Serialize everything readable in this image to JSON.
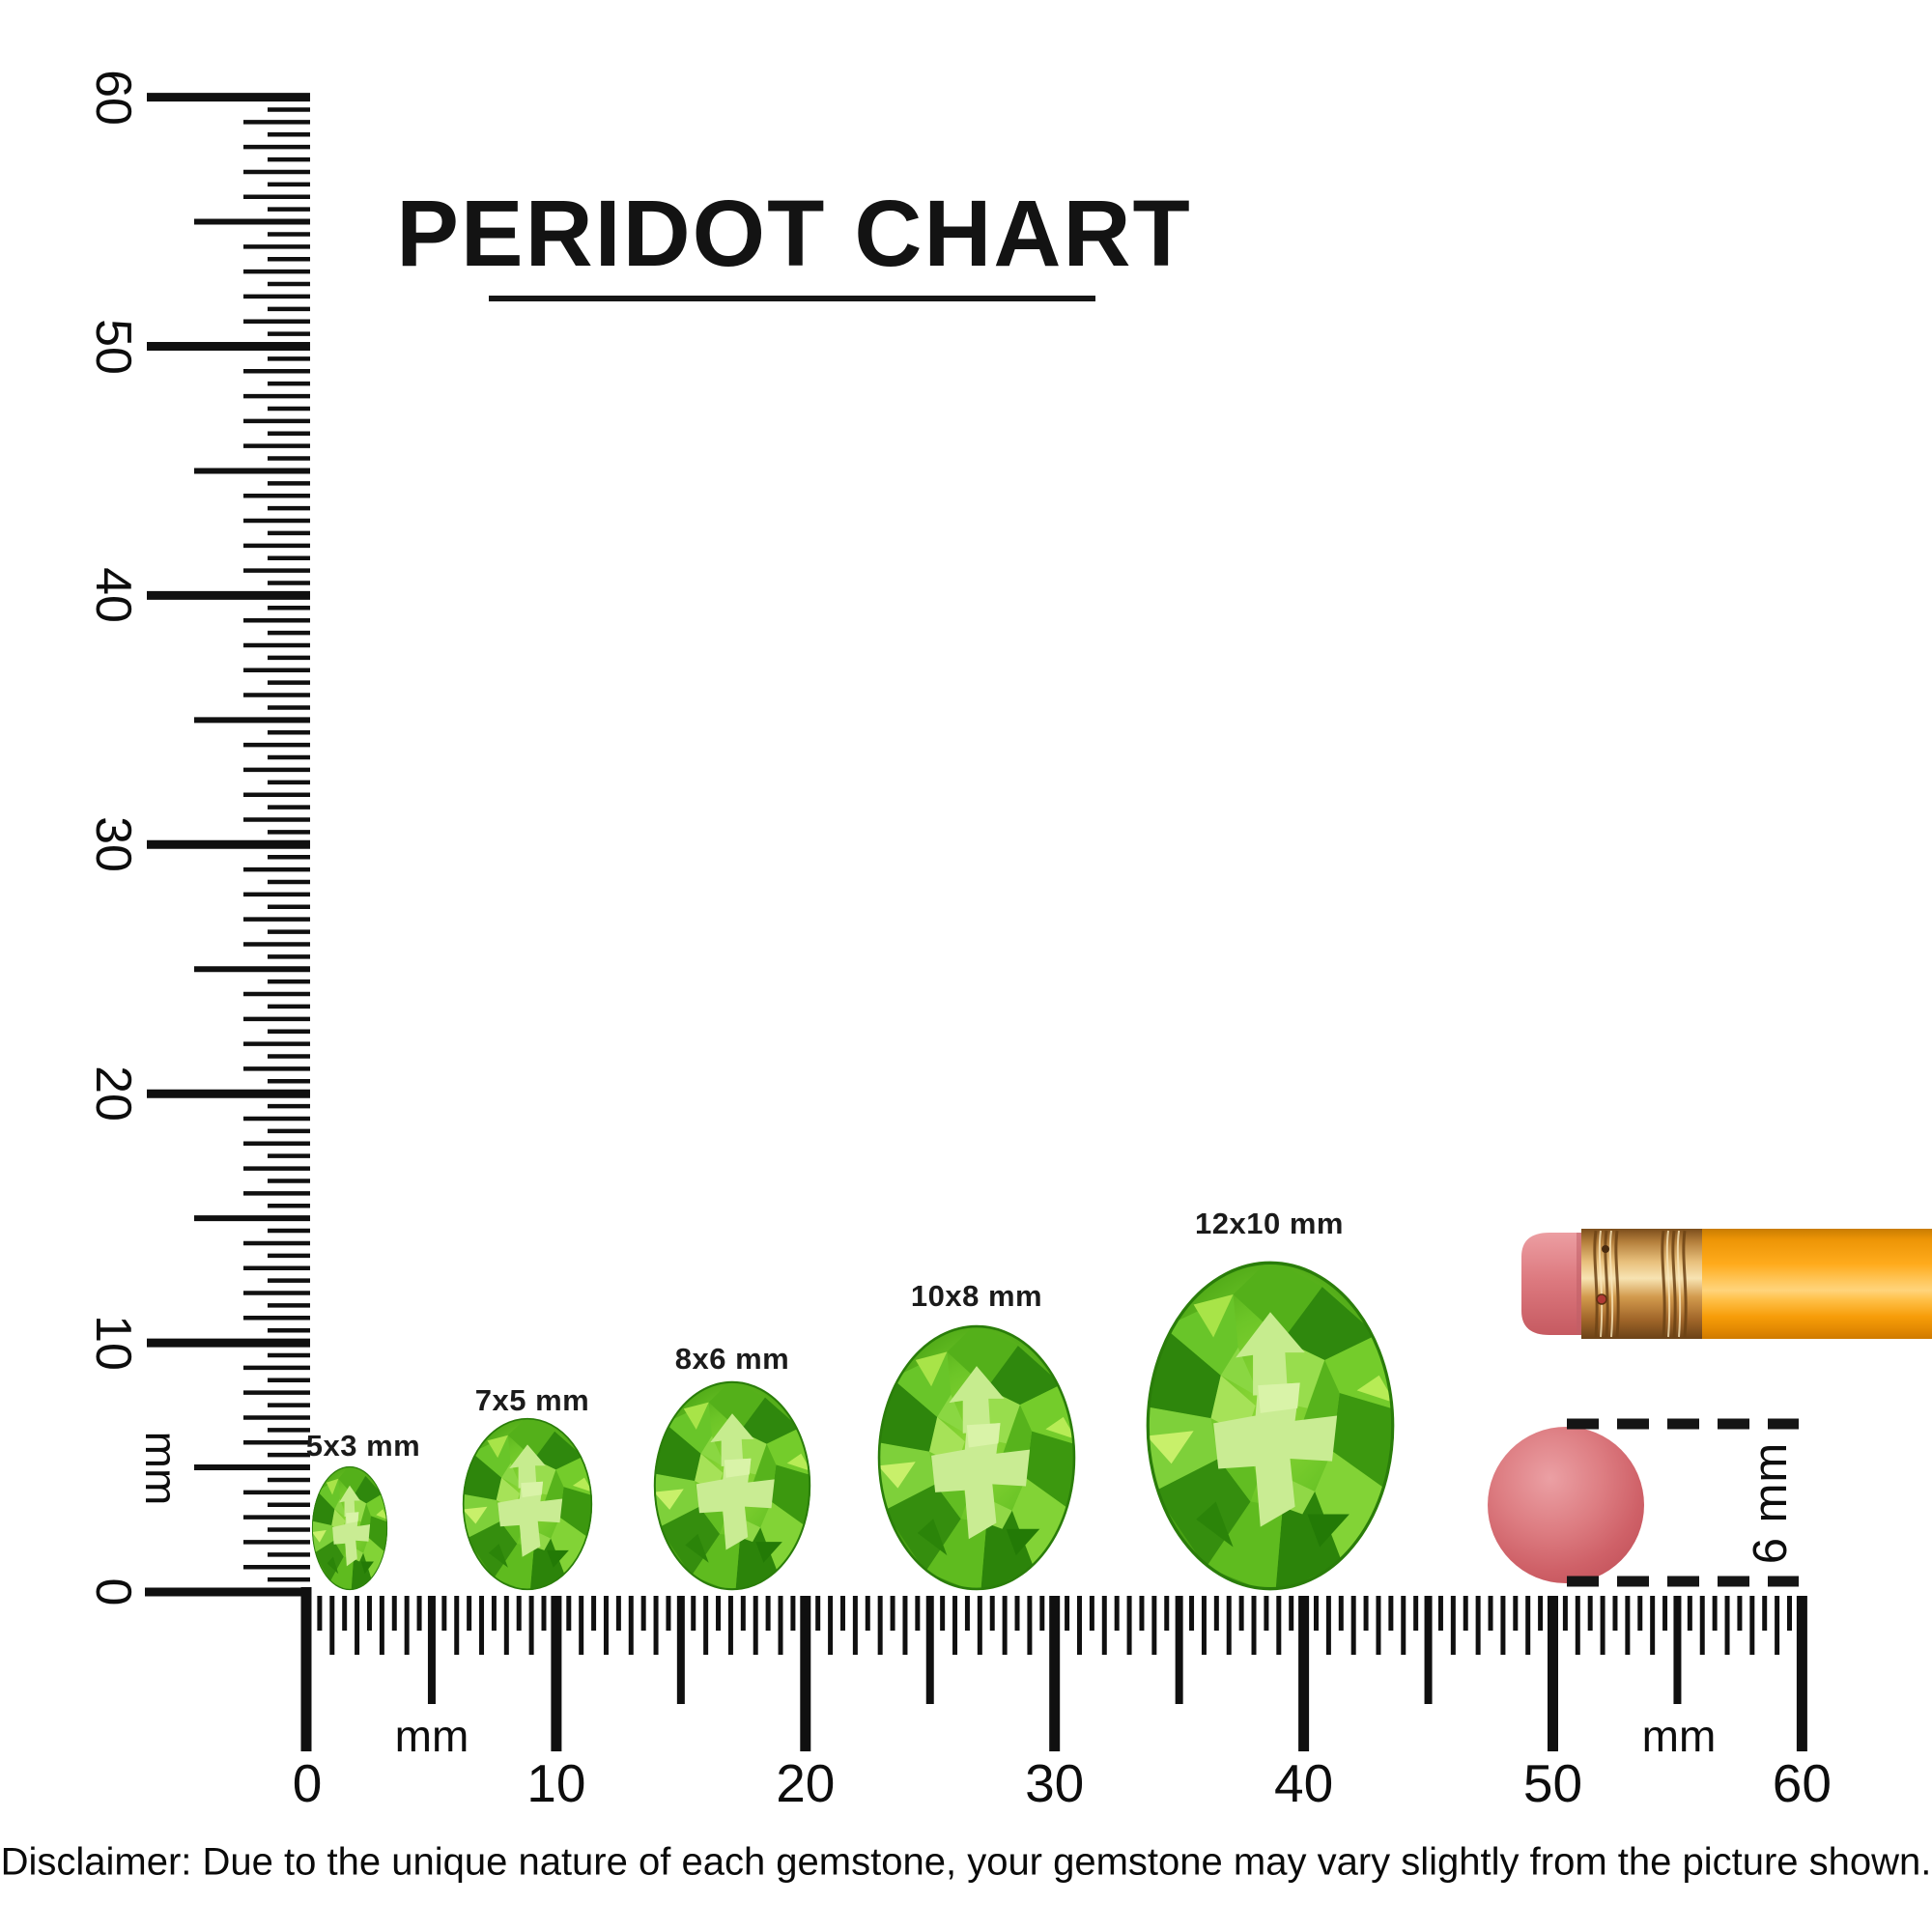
{
  "title": {
    "text": "PERIDOT CHART"
  },
  "gem_chart": {
    "stone": "Peridot",
    "shape": "oval",
    "sizes": [
      {
        "label": "5x3 mm",
        "width_mm": 3,
        "height_mm": 5
      },
      {
        "label": "7x5 mm",
        "width_mm": 5,
        "height_mm": 7
      },
      {
        "label": "8x6 mm",
        "width_mm": 6,
        "height_mm": 8
      },
      {
        "label": "10x8 mm",
        "width_mm": 8,
        "height_mm": 10
      },
      {
        "label": "12x10 mm",
        "width_mm": 10,
        "height_mm": 12
      }
    ]
  },
  "rulers": {
    "vertical": {
      "tick_labels": [
        "60",
        "50",
        "40",
        "30",
        "20",
        "10",
        "0"
      ],
      "unit_label": "mm",
      "range_mm": [
        0,
        60
      ]
    },
    "horizontal": {
      "tick_labels": [
        "0",
        "10",
        "20",
        "30",
        "40",
        "50",
        "60"
      ],
      "unit_labels": [
        "mm",
        "mm"
      ],
      "range_mm": [
        0,
        60
      ]
    }
  },
  "reference_objects": {
    "pencil": {
      "name": "pencil with eraser tip"
    },
    "eraser_disc": {
      "name": "round eraser",
      "size_label": "6 mm"
    }
  },
  "disclaimer": "Disclaimer: Due to the unique nature of each gemstone, your gemstone may vary slightly from the picture shown.",
  "colors": {
    "peridot_green": "#6cc527",
    "peridot_light": "#c9ec93",
    "peridot_dark": "#2f880d",
    "pencil_orange": "#ffab1c",
    "ferrule_gold": "#d29a4d",
    "eraser_pink": "#d66d72",
    "ink": "#111111"
  }
}
